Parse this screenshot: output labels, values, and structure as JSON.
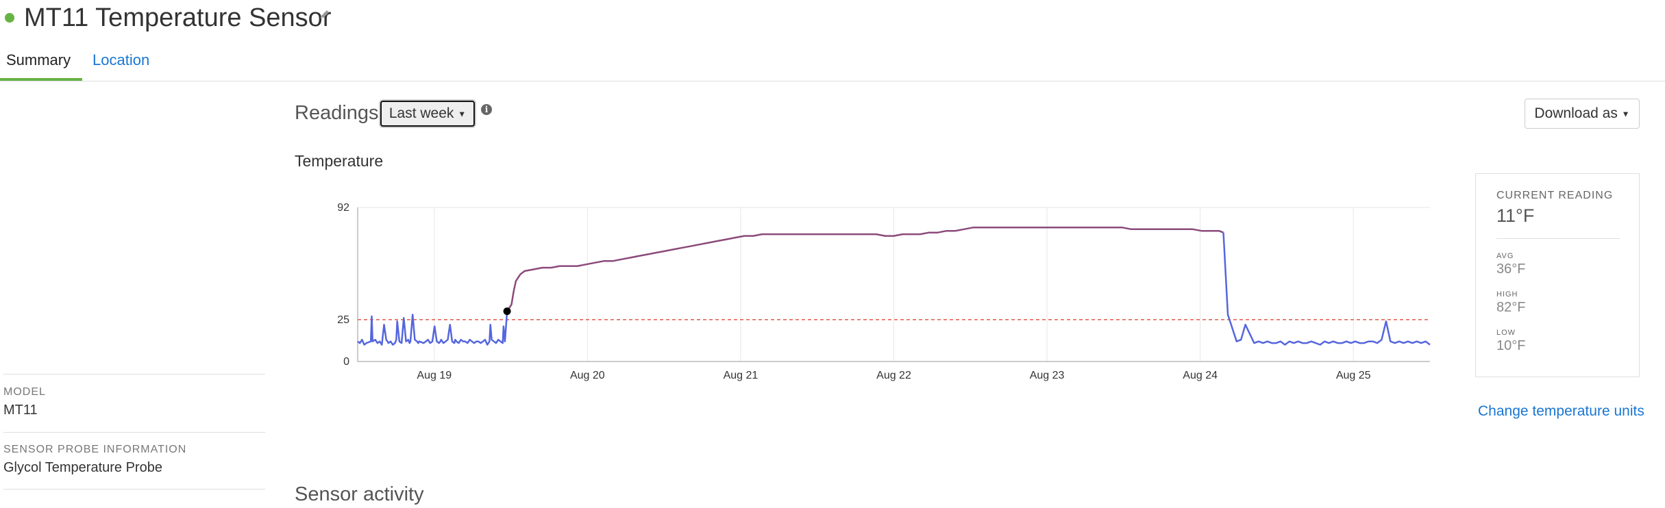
{
  "header": {
    "title": "MT11 Temperature Sensor",
    "status_color": "#67b346",
    "edit_icon": "pencil-icon"
  },
  "tabs": [
    {
      "label": "Summary",
      "active": true
    },
    {
      "label": "Location",
      "active": false
    }
  ],
  "readings": {
    "title": "Readings",
    "range_selected": "Last week",
    "info_icon": "info-icon",
    "download_label": "Download as"
  },
  "chart_data": {
    "type": "line",
    "title": "Temperature",
    "ylim": [
      0,
      92
    ],
    "y_ticks": [
      0,
      25,
      92
    ],
    "x_ticks": [
      "Aug 19",
      "Aug 20",
      "Aug 21",
      "Aug 22",
      "Aug 23",
      "Aug 24",
      "Aug 25"
    ],
    "x_range": [
      "Aug 18 12:00",
      "Aug 25 12:00"
    ],
    "threshold": {
      "value": 25,
      "color": "#e05a4a",
      "style": "dashed"
    },
    "grid": true,
    "series": [
      {
        "color": "#5566dd",
        "x": [
          18.5,
          18.55,
          18.6,
          18.65,
          18.7,
          18.8,
          18.82,
          18.84,
          18.9,
          18.95,
          19.0,
          19.05,
          19.1,
          19.15,
          19.18,
          19.2,
          19.25,
          19.3,
          19.35,
          19.38,
          19.4,
          19.45,
          19.5,
          19.55,
          19.6,
          19.65,
          19.68,
          19.7,
          19.75,
          19.8,
          19.85,
          19.88,
          19.9,
          20.0,
          20.05,
          20.1,
          20.15,
          20.2,
          20.25,
          20.3,
          20.35,
          20.38,
          20.4,
          20.45,
          20.5,
          20.55,
          20.6,
          20.65,
          20.7,
          20.72,
          20.75,
          20.8,
          20.85,
          20.9,
          20.95,
          21.0,
          21.05,
          21.1,
          21.15,
          21.2,
          21.25,
          21.3,
          21.35,
          21.4,
          21.45,
          21.5,
          21.52,
          21.55,
          21.6,
          21.65,
          21.7,
          21.75,
          21.8,
          21.82,
          21.85,
          21.9
        ],
        "y": [
          12,
          11,
          13,
          10,
          11,
          12,
          27,
          12,
          13,
          11,
          12,
          10,
          22,
          13,
          12,
          11,
          12,
          10,
          11,
          13,
          24,
          12,
          11,
          26,
          12,
          13,
          11,
          12,
          28,
          13,
          12,
          11,
          12,
          11,
          12,
          13,
          11,
          12,
          21,
          12,
          11,
          12,
          13,
          11,
          12,
          13,
          22,
          12,
          11,
          13,
          12,
          11,
          13,
          12,
          12,
          11,
          13,
          12,
          11,
          12,
          12,
          11,
          12,
          13,
          10,
          12,
          22,
          13,
          12,
          11,
          13,
          12,
          11,
          21,
          12,
          30
        ]
      },
      {
        "color": "#8b4a7a",
        "x": [
          21.9,
          21.95,
          22.0,
          22.05,
          22.1,
          22.2,
          22.3,
          22.5,
          22.7,
          22.9,
          23.1,
          23.3,
          23.5,
          23.7,
          23.9,
          24.1,
          24.3,
          24.5,
          24.7,
          24.9,
          25.1,
          25.3,
          25.5,
          25.7,
          25.9,
          26.1,
          26.3,
          26.5,
          26.7,
          26.9,
          27.1,
          27.3,
          27.5,
          27.7,
          27.9,
          28.1,
          28.3,
          28.5,
          28.7,
          28.9,
          29.1,
          29.3,
          29.5,
          29.7,
          29.9,
          30.1,
          30.3,
          30.5,
          30.7,
          30.9,
          31.1,
          31.3,
          31.5,
          31.7,
          31.9,
          32.1,
          32.3,
          32.5,
          32.7,
          32.9,
          33.1,
          33.3,
          33.5,
          33.7,
          33.9,
          34.1,
          34.3,
          34.5,
          34.7,
          34.9,
          35.1,
          35.3,
          35.5,
          35.7,
          35.9,
          36.1,
          36.3,
          36.5,
          36.7,
          36.9,
          37.1,
          37.2,
          37.3,
          37.5,
          37.7,
          37.8,
          37.9,
          38.0,
          38.1,
          38.2
        ],
        "y": [
          30,
          32,
          34,
          42,
          48,
          52,
          54,
          55,
          56,
          56,
          57,
          57,
          57,
          58,
          59,
          60,
          60,
          61,
          62,
          63,
          64,
          65,
          66,
          67,
          68,
          69,
          70,
          71,
          72,
          73,
          74,
          75,
          75,
          76,
          76,
          76,
          76,
          76,
          76,
          76,
          76,
          76,
          76,
          76,
          76,
          76,
          76,
          75,
          75,
          76,
          76,
          76,
          77,
          77,
          78,
          78,
          79,
          80,
          80,
          80,
          80,
          80,
          80,
          80,
          80,
          80,
          80,
          80,
          80,
          80,
          80,
          80,
          80,
          80,
          80,
          79,
          79,
          79,
          79,
          79,
          79,
          79,
          79,
          79,
          78,
          78,
          78,
          78,
          78,
          77
        ]
      },
      {
        "color": "#5566dd",
        "x": [
          38.2,
          38.3,
          38.5,
          38.6,
          38.7,
          38.9,
          39.0,
          39.1,
          39.2,
          39.3,
          39.4,
          39.5,
          39.6,
          39.7,
          39.8,
          39.9,
          40.0,
          40.1,
          40.2,
          40.3,
          40.4,
          40.5,
          40.6,
          40.7,
          40.8,
          40.9,
          41.0,
          41.1,
          41.2,
          41.3,
          41.4,
          41.5,
          41.6,
          41.7,
          41.8,
          41.9,
          42.0,
          42.1,
          42.2,
          42.3,
          42.4,
          42.5,
          42.6,
          42.7,
          42.8,
          42.9
        ],
        "y": [
          77,
          28,
          12,
          13,
          22,
          11,
          12,
          11,
          12,
          11,
          11,
          12,
          10,
          12,
          11,
          12,
          11,
          11,
          12,
          11,
          10,
          12,
          11,
          12,
          11,
          11,
          12,
          11,
          12,
          11,
          11,
          12,
          12,
          11,
          13,
          24,
          12,
          11,
          12,
          11,
          12,
          11,
          12,
          11,
          12,
          10
        ]
      }
    ],
    "marker": {
      "x": 21.9,
      "y": 30
    }
  },
  "current_reading": {
    "label": "CURRENT READING",
    "value": "11°F",
    "avg_label": "AVG",
    "avg_value": "36°F",
    "high_label": "HIGH",
    "high_value": "82°F",
    "low_label": "LOW",
    "low_value": "10°F"
  },
  "change_units_label": "Change temperature units",
  "sidebar": {
    "model_label": "MODEL",
    "model_value": "MT11",
    "probe_label": "SENSOR PROBE INFORMATION",
    "probe_value": "Glycol Temperature Probe"
  },
  "bottom_heading": "Sensor activity"
}
